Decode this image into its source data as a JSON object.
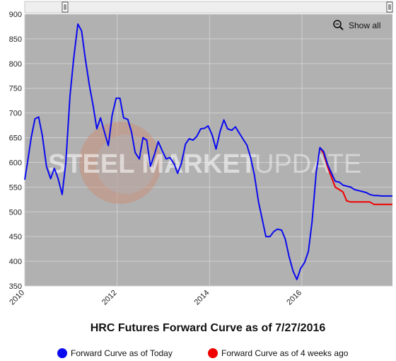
{
  "chart_data": {
    "type": "line",
    "title": "HRC Futures Forward Curve as of 7/27/2016",
    "xlabel": "",
    "ylabel": "",
    "xlim": [
      2010.0,
      2017.96
    ],
    "ylim": [
      350,
      900
    ],
    "y_ticks": [
      350,
      400,
      450,
      500,
      550,
      600,
      650,
      700,
      750,
      800,
      850,
      900
    ],
    "x_ticks": [
      {
        "value": 2010,
        "label": "2010"
      },
      {
        "value": 2012,
        "label": "2012"
      },
      {
        "value": 2014,
        "label": "2014"
      },
      {
        "value": 2016,
        "label": "2016"
      }
    ],
    "grid": true,
    "legend_position": "bottom",
    "series": [
      {
        "name": "Forward Curve as of Today",
        "color": "#0a0af0",
        "points": [
          [
            2010.0,
            565
          ],
          [
            2010.06,
            600
          ],
          [
            2010.14,
            650
          ],
          [
            2010.22,
            688
          ],
          [
            2010.3,
            692
          ],
          [
            2010.38,
            655
          ],
          [
            2010.47,
            592
          ],
          [
            2010.56,
            567
          ],
          [
            2010.64,
            588
          ],
          [
            2010.72,
            568
          ],
          [
            2010.81,
            535
          ],
          [
            2010.89,
            600
          ],
          [
            2010.98,
            735
          ],
          [
            2011.06,
            810
          ],
          [
            2011.15,
            880
          ],
          [
            2011.23,
            866
          ],
          [
            2011.31,
            810
          ],
          [
            2011.4,
            755
          ],
          [
            2011.48,
            715
          ],
          [
            2011.56,
            668
          ],
          [
            2011.64,
            690
          ],
          [
            2011.73,
            660
          ],
          [
            2011.81,
            634
          ],
          [
            2011.89,
            695
          ],
          [
            2011.98,
            730
          ],
          [
            2012.06,
            730
          ],
          [
            2012.14,
            690
          ],
          [
            2012.23,
            687
          ],
          [
            2012.31,
            662
          ],
          [
            2012.39,
            620
          ],
          [
            2012.48,
            607
          ],
          [
            2012.56,
            650
          ],
          [
            2012.64,
            645
          ],
          [
            2012.72,
            592
          ],
          [
            2012.81,
            617
          ],
          [
            2012.89,
            642
          ],
          [
            2012.97,
            625
          ],
          [
            2013.06,
            607
          ],
          [
            2013.14,
            610
          ],
          [
            2013.23,
            598
          ],
          [
            2013.31,
            578
          ],
          [
            2013.39,
            598
          ],
          [
            2013.48,
            637
          ],
          [
            2013.56,
            648
          ],
          [
            2013.64,
            645
          ],
          [
            2013.72,
            652
          ],
          [
            2013.81,
            668
          ],
          [
            2013.89,
            669
          ],
          [
            2013.97,
            674
          ],
          [
            2014.06,
            655
          ],
          [
            2014.14,
            627
          ],
          [
            2014.23,
            663
          ],
          [
            2014.31,
            686
          ],
          [
            2014.39,
            668
          ],
          [
            2014.48,
            665
          ],
          [
            2014.56,
            672
          ],
          [
            2014.64,
            660
          ],
          [
            2014.72,
            648
          ],
          [
            2014.81,
            635
          ],
          [
            2014.89,
            610
          ],
          [
            2014.97,
            575
          ],
          [
            2015.06,
            520
          ],
          [
            2015.14,
            485
          ],
          [
            2015.22,
            450
          ],
          [
            2015.31,
            450
          ],
          [
            2015.39,
            460
          ],
          [
            2015.47,
            465
          ],
          [
            2015.56,
            463
          ],
          [
            2015.64,
            445
          ],
          [
            2015.72,
            410
          ],
          [
            2015.81,
            380
          ],
          [
            2015.89,
            363
          ],
          [
            2015.97,
            385
          ],
          [
            2016.06,
            398
          ],
          [
            2016.14,
            420
          ],
          [
            2016.22,
            480
          ],
          [
            2016.31,
            580
          ],
          [
            2016.39,
            630
          ],
          [
            2016.47,
            622
          ],
          [
            2016.56,
            595
          ],
          [
            2016.64,
            578
          ],
          [
            2016.72,
            562
          ],
          [
            2016.81,
            560
          ],
          [
            2016.89,
            554
          ],
          [
            2016.97,
            552
          ],
          [
            2017.06,
            550
          ],
          [
            2017.14,
            545
          ],
          [
            2017.23,
            543
          ],
          [
            2017.31,
            541
          ],
          [
            2017.39,
            539
          ],
          [
            2017.47,
            535
          ],
          [
            2017.56,
            533
          ],
          [
            2017.64,
            533
          ],
          [
            2017.72,
            532
          ],
          [
            2017.81,
            532
          ],
          [
            2017.89,
            532
          ],
          [
            2017.96,
            532
          ]
        ]
      },
      {
        "name": "Forward Curve as of 4 weeks ago",
        "color": "#f00000",
        "points": [
          [
            2016.39,
            630
          ],
          [
            2016.47,
            618
          ],
          [
            2016.56,
            590
          ],
          [
            2016.64,
            570
          ],
          [
            2016.72,
            550
          ],
          [
            2016.81,
            545
          ],
          [
            2016.89,
            540
          ],
          [
            2016.97,
            522
          ],
          [
            2017.06,
            520
          ],
          [
            2017.14,
            520
          ],
          [
            2017.23,
            520
          ],
          [
            2017.31,
            520
          ],
          [
            2017.39,
            520
          ],
          [
            2017.47,
            520
          ],
          [
            2017.56,
            515
          ],
          [
            2017.64,
            515
          ],
          [
            2017.72,
            515
          ],
          [
            2017.81,
            515
          ],
          [
            2017.89,
            515
          ],
          [
            2017.96,
            515
          ]
        ]
      }
    ]
  },
  "toolbar": {
    "show_all_label": "Show all",
    "zoom_icon": "magnifier-icon"
  },
  "watermark": {
    "text_bold": "STEEL MARKET",
    "text_light": "UPDATE"
  },
  "colors": {
    "plot_background": "#b1b1b1",
    "gridline": "#cfcfcf",
    "navigator_background": "#eeeeee"
  }
}
